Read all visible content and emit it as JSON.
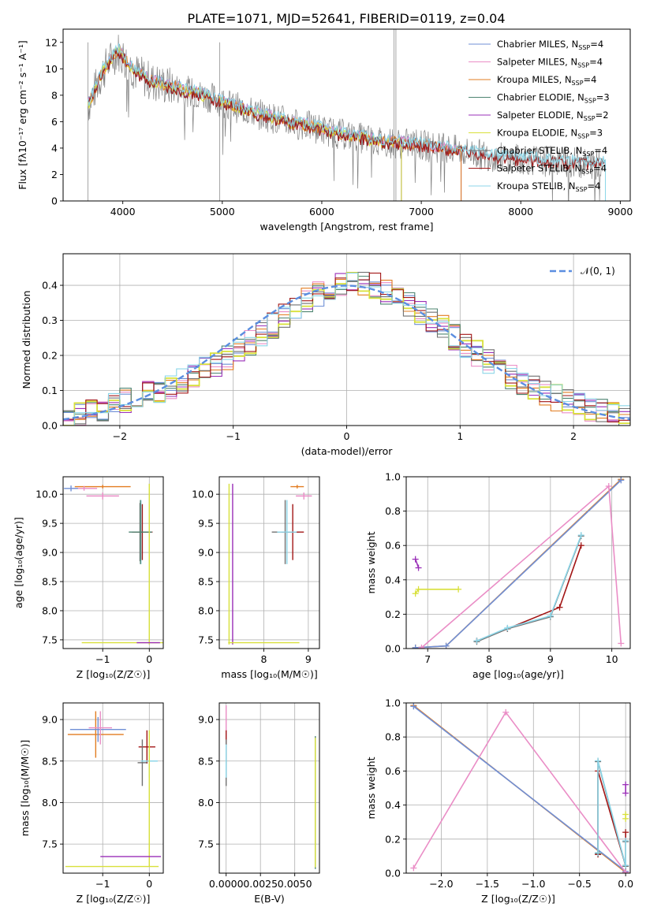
{
  "figure_title": "PLATE=1071, MJD=52641, FIBERID=0119, z=0.04",
  "colors": {
    "Chabrier MILES": "#6f8fd6",
    "Salpeter MILES": "#ea8dc6",
    "Kroupa MILES": "#e27c20",
    "Chabrier ELODIE": "#4e8472",
    "Salpeter ELODIE": "#9a2fb8",
    "Kroupa ELODIE": "#d8e03a",
    "Chabrier STELIB": "#707070",
    "Salpeter STELIB": "#a21616",
    "Kroupa STELIB": "#8cd6e8",
    "gaussian": "#5b8ee0",
    "grid": "#b0b0b0"
  },
  "chart_data": [
    {
      "id": "spectrum",
      "type": "line",
      "xlabel": "wavelength [Angstrom, rest frame]",
      "ylabel": "Flux [fλ10⁻¹⁷ erg cm⁻² s⁻¹ A⁻¹]",
      "xlim": [
        3400,
        9100
      ],
      "ylim": [
        0,
        13
      ],
      "xticks": [
        4000,
        5000,
        6000,
        7000,
        8000,
        9000
      ],
      "yticks": [
        0,
        2,
        4,
        6,
        8,
        10,
        12
      ],
      "grid": false,
      "legend_position": "top-right",
      "legend": [
        "Chabrier MILES, N_SSP=4",
        "Salpeter MILES, N_SSP=4",
        "Kroupa MILES, N_SSP=4",
        "Chabrier ELODIE, N_SSP=3",
        "Salpeter ELODIE, N_SSP=2",
        "Kroupa ELODIE, N_SSP=3",
        "Chabrier STELIB, N_SSP=4",
        "Salpeter STELIB, N_SSP=4",
        "Kroupa STELIB, N_SSP=4"
      ],
      "data_curve": {
        "x": [
          3650,
          3800,
          3950,
          4050,
          4150,
          4300,
          4500,
          4700,
          4900,
          5100,
          5300,
          5500,
          5700,
          5900,
          6100,
          6300,
          6500,
          6700,
          6900,
          7100,
          7300,
          7500,
          7700,
          7900,
          8100,
          8300,
          8500,
          8700,
          8830
        ],
        "y": [
          7.2,
          9.8,
          11.4,
          10.4,
          9.6,
          9.0,
          8.6,
          8.2,
          7.8,
          7.2,
          6.7,
          6.3,
          5.9,
          5.6,
          5.2,
          4.9,
          4.6,
          4.4,
          4.3,
          4.1,
          3.9,
          3.6,
          3.4,
          3.2,
          3.1,
          3.0,
          2.9,
          2.8,
          2.8
        ]
      },
      "model_ends": {
        "MILES": 7400,
        "ELODIE": 6800,
        "STELIB": 8850
      }
    },
    {
      "id": "residual_distribution",
      "type": "line",
      "xlabel": "(data-model)/error",
      "ylabel": "Normed distribution",
      "xlim": [
        -2.5,
        2.5
      ],
      "ylim": [
        0,
        0.49
      ],
      "xticks": [
        -2,
        -1,
        0,
        1,
        2
      ],
      "yticks": [
        0.0,
        0.1,
        0.2,
        0.3,
        0.4
      ],
      "grid": true,
      "legend_position": "top-right",
      "legend": [
        "𝒩(0, 1)"
      ],
      "bin_edges_start": -2.5,
      "bin_width": 0.1,
      "histogram": [
        0.026,
        0.03,
        0.038,
        0.048,
        0.06,
        0.07,
        0.08,
        0.09,
        0.1,
        0.112,
        0.125,
        0.14,
        0.158,
        0.175,
        0.19,
        0.21,
        0.235,
        0.26,
        0.285,
        0.31,
        0.335,
        0.355,
        0.375,
        0.392,
        0.405,
        0.41,
        0.408,
        0.398,
        0.383,
        0.365,
        0.345,
        0.323,
        0.3,
        0.277,
        0.252,
        0.228,
        0.205,
        0.182,
        0.16,
        0.14,
        0.122,
        0.106,
        0.092,
        0.079,
        0.068,
        0.058,
        0.048,
        0.04,
        0.032,
        0.025
      ]
    },
    {
      "id": "age_vs_Z",
      "type": "scatter",
      "xlabel": "Z [log₁₀(Z/Z☉)]",
      "ylabel": "age [log₁₀(age/yr)]",
      "xlim": [
        -1.85,
        0.3
      ],
      "ylim": [
        7.35,
        10.3
      ],
      "xticks": [
        -1,
        0
      ],
      "yticks": [
        7.5,
        8.0,
        8.5,
        9.0,
        9.5,
        10.0
      ],
      "grid": true,
      "errorbars": [
        {
          "series": "Kroupa MILES",
          "x": -1.0,
          "y": 10.13,
          "xerr": 0.6,
          "yerr": 0.03
        },
        {
          "series": "Salpeter MILES",
          "x": -1.0,
          "y": 9.97,
          "xerr": 0.35,
          "yerr": 0.06
        },
        {
          "series": "Salpeter MILES",
          "x": -1.4,
          "y": 10.1,
          "xerr": 0.28,
          "yerr": 0.04
        },
        {
          "series": "Chabrier MILES",
          "x": -1.68,
          "y": 10.1,
          "xerr": 0.15,
          "yerr": 0.05
        },
        {
          "series": "Chabrier STELIB",
          "x": -0.2,
          "y": 9.35,
          "xerr": 0.0,
          "yerr": 0.5
        },
        {
          "series": "Kroupa STELIB",
          "x": -0.18,
          "y": 9.35,
          "xerr": 0.2,
          "yerr": 0.55
        },
        {
          "series": "Salpeter STELIB",
          "x": -0.15,
          "y": 9.35,
          "xerr": 0.22,
          "yerr": 0.48
        },
        {
          "series": "Chabrier ELODIE",
          "x": -0.19,
          "y": 9.35,
          "xerr": 0.25,
          "yerr": 0.55
        },
        {
          "series": "Kroupa ELODIE",
          "x": -0.35,
          "y": 7.45,
          "xerr": 1.1,
          "yerr": 0.0
        },
        {
          "series": "Kroupa ELODIE",
          "x": 0.0,
          "y": 8.8,
          "xerr": 0.0,
          "yerr": 1.38
        },
        {
          "series": "Salpeter ELODIE",
          "x": -0.02,
          "y": 7.45,
          "xerr": 0.25,
          "yerr": 0.0
        }
      ]
    },
    {
      "id": "age_vs_mass",
      "type": "scatter",
      "xlabel": "mass [log₁₀(M/M☉)]",
      "ylabel": "",
      "xlim": [
        7.0,
        9.25
      ],
      "ylim": [
        7.35,
        10.3
      ],
      "xticks": [
        8,
        9
      ],
      "yticks": [
        7.5,
        8.0,
        8.5,
        9.0,
        9.5,
        10.0
      ],
      "grid": true,
      "errorbars": [
        {
          "series": "Kroupa MILES",
          "x": 8.75,
          "y": 10.13,
          "xerr": 0.15,
          "yerr": 0.03
        },
        {
          "series": "Salpeter MILES",
          "x": 8.9,
          "y": 9.97,
          "xerr": 0.18,
          "yerr": 0.06
        },
        {
          "series": "Chabrier STELIB",
          "x": 8.48,
          "y": 9.35,
          "xerr": 0.3,
          "yerr": 0.55
        },
        {
          "series": "Salpeter STELIB",
          "x": 8.65,
          "y": 9.35,
          "xerr": 0.25,
          "yerr": 0.48
        },
        {
          "series": "Kroupa STELIB",
          "x": 8.52,
          "y": 9.35,
          "xerr": 0.22,
          "yerr": 0.55
        },
        {
          "series": "Kroupa ELODIE",
          "x": 7.22,
          "y": 8.8,
          "xerr": 0.0,
          "yerr": 1.38
        },
        {
          "series": "Salpeter ELODIE",
          "x": 7.3,
          "y": 8.8,
          "xerr": 0.0,
          "yerr": 1.38
        },
        {
          "series": "Kroupa ELODIE",
          "x": 8.0,
          "y": 7.45,
          "xerr": 0.8,
          "yerr": 0.0
        }
      ]
    },
    {
      "id": "massweight_vs_age",
      "type": "line",
      "xlabel": "age [log₁₀(age/yr)]",
      "ylabel": "mass weight",
      "xlim": [
        6.65,
        10.3
      ],
      "ylim": [
        0,
        1.0
      ],
      "xticks": [
        7,
        8,
        9,
        10
      ],
      "yticks": [
        0.0,
        0.2,
        0.4,
        0.6,
        0.8,
        1.0
      ],
      "grid": true,
      "series": [
        {
          "name": "Kroupa MILES",
          "x": [
            6.8,
            7.3,
            10.15
          ],
          "y": [
            0.005,
            0.015,
            0.985
          ]
        },
        {
          "name": "Chabrier MILES",
          "x": [
            6.8,
            7.3,
            10.15
          ],
          "y": [
            0.005,
            0.015,
            0.98
          ]
        },
        {
          "name": "Salpeter MILES",
          "x": [
            6.9,
            9.95,
            10.15
          ],
          "y": [
            0.005,
            0.945,
            0.03
          ]
        },
        {
          "name": "Salpeter STELIB",
          "x": [
            7.8,
            8.3,
            9.15,
            9.5
          ],
          "y": [
            0.045,
            0.115,
            0.24,
            0.6
          ]
        },
        {
          "name": "Chabrier STELIB",
          "x": [
            7.8,
            8.3,
            9.0,
            9.5
          ],
          "y": [
            0.04,
            0.115,
            0.185,
            0.655
          ]
        },
        {
          "name": "Kroupa STELIB",
          "x": [
            7.8,
            8.3,
            9.0,
            9.5
          ],
          "y": [
            0.045,
            0.12,
            0.19,
            0.66
          ]
        },
        {
          "name": "Salpeter ELODIE",
          "x": [
            6.8,
            6.85
          ],
          "y": [
            0.52,
            0.47
          ]
        },
        {
          "name": "Kroupa ELODIE",
          "x": [
            6.8,
            6.85,
            7.5
          ],
          "y": [
            0.32,
            0.345,
            0.345
          ]
        }
      ]
    },
    {
      "id": "mass_vs_Z",
      "type": "scatter",
      "xlabel": "Z [log₁₀(Z/Z☉)]",
      "ylabel": "mass [log₁₀(M/M☉)]",
      "xlim": [
        -1.85,
        0.3
      ],
      "ylim": [
        7.15,
        9.2
      ],
      "xticks": [
        -1,
        0
      ],
      "yticks": [
        7.5,
        8.0,
        8.5,
        9.0
      ],
      "grid": true,
      "errorbars": [
        {
          "series": "Kroupa MILES",
          "x": -1.15,
          "y": 8.82,
          "xerr": 0.6,
          "yerr": 0.28
        },
        {
          "series": "Chabrier MILES",
          "x": -1.1,
          "y": 8.88,
          "xerr": 0.6,
          "yerr": 0.15
        },
        {
          "series": "Salpeter MILES",
          "x": -1.05,
          "y": 8.9,
          "xerr": 0.25,
          "yerr": 0.2
        },
        {
          "series": "Salpeter STELIB",
          "x": -0.05,
          "y": 8.67,
          "xerr": 0.18,
          "yerr": 0.2
        },
        {
          "series": "Chabrier STELIB",
          "x": -0.15,
          "y": 8.48,
          "xerr": 0.1,
          "yerr": 0.28
        },
        {
          "series": "Kroupa STELIB",
          "x": 0.0,
          "y": 8.5,
          "xerr": 0.18,
          "yerr": 0.2
        },
        {
          "series": "Kroupa ELODIE",
          "x": 0.0,
          "y": 8.05,
          "xerr": 0.0,
          "yerr": 0.82
        },
        {
          "series": "Salpeter ELODIE",
          "x": -0.4,
          "y": 7.35,
          "xerr": 0.65,
          "yerr": 0.0
        },
        {
          "series": "Kroupa ELODIE",
          "x": -0.8,
          "y": 7.23,
          "xerr": 1.0,
          "yerr": 0.0
        }
      ]
    },
    {
      "id": "mass_vs_EBV",
      "type": "scatter",
      "xlabel": "E(B-V)",
      "ylabel": "",
      "xlim": [
        -0.0005,
        0.0068
      ],
      "ylim": [
        7.15,
        9.2
      ],
      "xticks": [
        0.0,
        0.0025,
        0.005
      ],
      "xticklabels": [
        "0.0000",
        "0.0025",
        "0.0050"
      ],
      "yticks": [
        7.5,
        8.0,
        8.5,
        9.0
      ],
      "grid": true,
      "errorbars": [
        {
          "series": "Salpeter MILES",
          "x": 0.0,
          "y": 8.95,
          "xerr": 0.0,
          "yerr": 0.22
        },
        {
          "series": "Salpeter STELIB",
          "x": 0.0,
          "y": 8.67,
          "xerr": 0.0,
          "yerr": 0.2
        },
        {
          "series": "Chabrier STELIB",
          "x": 0.0,
          "y": 8.48,
          "xerr": 0.0,
          "yerr": 0.28
        },
        {
          "series": "Kroupa STELIB",
          "x": 0.0,
          "y": 8.5,
          "xerr": 0.0,
          "yerr": 0.2
        },
        {
          "series": "Chabrier ELODIE",
          "x": 0.0065,
          "y": 8.0,
          "xerr": 0.0,
          "yerr": 0.8
        },
        {
          "series": "Kroupa ELODIE",
          "x": 0.0065,
          "y": 8.0,
          "xerr": 0.0,
          "yerr": 0.78
        }
      ]
    },
    {
      "id": "massweight_vs_Z",
      "type": "line",
      "xlabel": "Z [log₁₀(Z/Z☉)]",
      "ylabel": "mass weight",
      "xlim": [
        -2.38,
        0.05
      ],
      "ylim": [
        0,
        1.0
      ],
      "xticks": [
        -2.0,
        -1.5,
        -1.0,
        -0.5,
        0.0
      ],
      "yticks": [
        0.0,
        0.2,
        0.4,
        0.6,
        0.8,
        1.0
      ],
      "grid": true,
      "series": [
        {
          "name": "Kroupa MILES",
          "x": [
            -2.3,
            0.0
          ],
          "y": [
            0.985,
            0.005
          ]
        },
        {
          "name": "Chabrier MILES",
          "x": [
            -2.3,
            0.0
          ],
          "y": [
            0.98,
            0.01
          ]
        },
        {
          "name": "Salpeter MILES",
          "x": [
            -2.3,
            -1.3,
            0.0
          ],
          "y": [
            0.03,
            0.945,
            0.005
          ]
        },
        {
          "name": "Salpeter STELIB",
          "x": [
            -0.3,
            -0.3,
            0.0,
            0.0
          ],
          "y": [
            0.11,
            0.6,
            0.045,
            0.24
          ]
        },
        {
          "name": "Chabrier STELIB",
          "x": [
            -0.3,
            -0.3,
            0.0,
            0.0
          ],
          "y": [
            0.115,
            0.655,
            0.04,
            0.185
          ]
        },
        {
          "name": "Kroupa STELIB",
          "x": [
            -0.3,
            -0.3,
            0.0,
            0.0
          ],
          "y": [
            0.12,
            0.66,
            0.045,
            0.19
          ]
        },
        {
          "name": "Salpeter ELODIE",
          "x": [
            0.0,
            0.0
          ],
          "y": [
            0.52,
            0.47
          ]
        },
        {
          "name": "Kroupa ELODIE",
          "x": [
            0.0,
            0.0
          ],
          "y": [
            0.345,
            0.32
          ]
        }
      ]
    }
  ]
}
